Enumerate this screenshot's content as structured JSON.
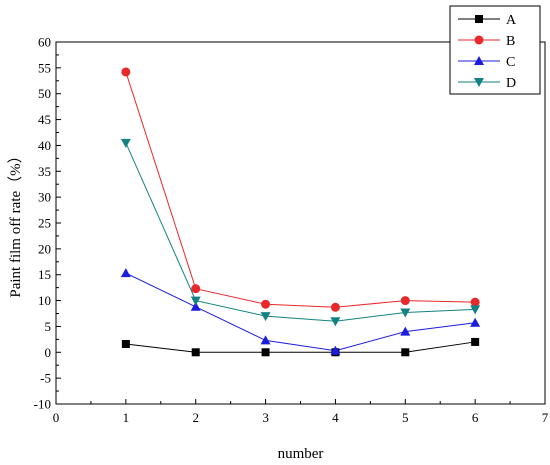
{
  "chart_data": {
    "type": "line",
    "xlabel": "number",
    "ylabel": "Paint film off rate（%）",
    "xlim": [
      0,
      7
    ],
    "ylim": [
      -10,
      60
    ],
    "xticks": [
      "0",
      "1",
      "2",
      "3",
      "4",
      "5",
      "6",
      "7"
    ],
    "yticks": [
      "-10",
      "-5",
      "0",
      "5",
      "10",
      "15",
      "20",
      "25",
      "30",
      "35",
      "40",
      "45",
      "50",
      "55",
      "60"
    ],
    "x": [
      1,
      2,
      3,
      4,
      5,
      6
    ],
    "grid": false,
    "legend_position": "top-right",
    "series": [
      {
        "name": "A",
        "color": "#000000",
        "marker": "square",
        "values": [
          1.6,
          0,
          0,
          0,
          0,
          2.0
        ]
      },
      {
        "name": "B",
        "color": "#e8292b",
        "marker": "circle",
        "values": [
          54.2,
          12.3,
          9.3,
          8.7,
          10.0,
          9.7
        ]
      },
      {
        "name": "C",
        "color": "#1c1ce0",
        "marker": "triangle-up",
        "values": [
          15.3,
          8.8,
          2.3,
          0.3,
          4.0,
          5.7
        ]
      },
      {
        "name": "D",
        "color": "#128282",
        "marker": "triangle-down",
        "values": [
          40.5,
          10.0,
          7.0,
          6.0,
          7.7,
          8.3
        ]
      }
    ]
  }
}
